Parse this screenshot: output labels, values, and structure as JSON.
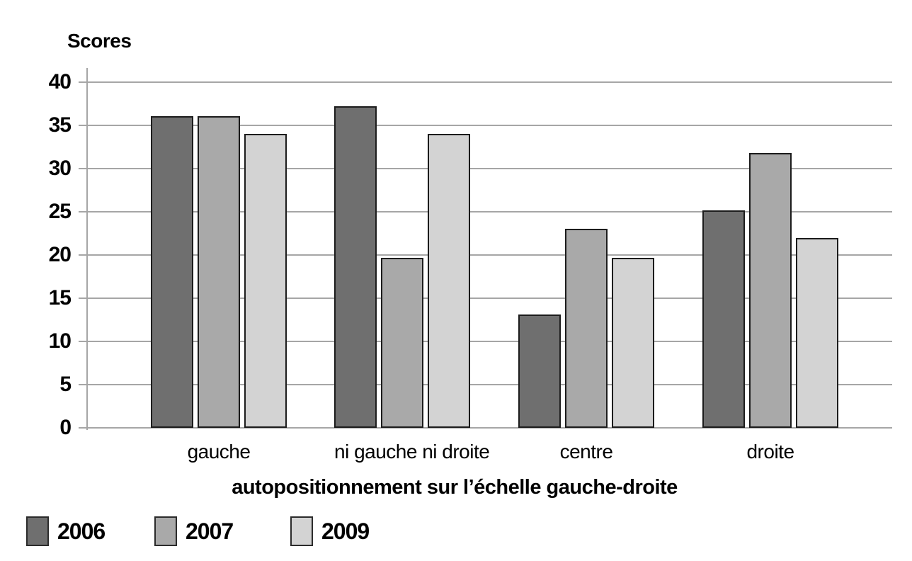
{
  "chart_data": {
    "type": "bar",
    "title": "Scores",
    "ylabel": "Scores",
    "xlabel": "autopositionnement sur l’échelle gauche-droite",
    "categories": [
      "gauche",
      "ni gauche ni droite",
      "centre",
      "droite"
    ],
    "series": [
      {
        "name": "2006",
        "color": "#6f6f6f",
        "values": [
          36.1,
          37.2,
          13.1,
          25.2
        ]
      },
      {
        "name": "2007",
        "color": "#a9a9a9",
        "values": [
          36.1,
          19.7,
          23.0,
          31.8
        ]
      },
      {
        "name": "2009",
        "color": "#d3d3d3",
        "values": [
          34.0,
          34.0,
          19.7,
          22.0
        ]
      }
    ],
    "ylim": [
      0,
      40
    ],
    "yticks": [
      0,
      5,
      10,
      15,
      20,
      25,
      30,
      35,
      40
    ],
    "grid": true,
    "legend_position": "bottom-left",
    "colors": {
      "gridline": "#a6a6a6",
      "bar_border": "#1c1c1c",
      "text": "#000000",
      "background": "#ffffff"
    }
  }
}
